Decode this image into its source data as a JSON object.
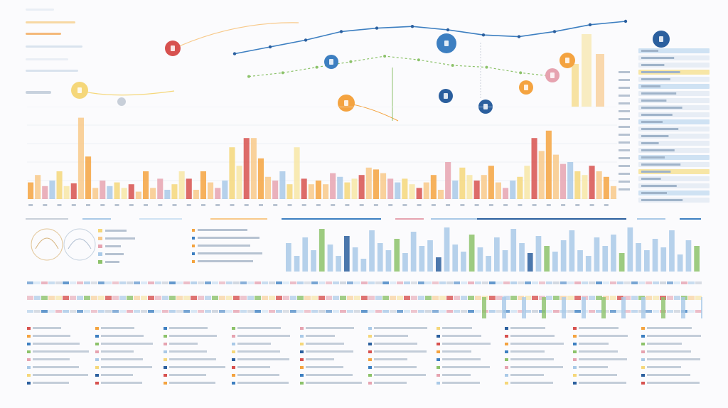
{
  "palette": {
    "orange": "#f4a340",
    "light_orange": "#f8c98a",
    "yellow": "#f5d77a",
    "pale_yellow": "#f7e6a6",
    "blue": "#3d7fc1",
    "light_blue": "#a9c9e7",
    "pale_blue": "#cfe2f3",
    "red": "#d7514f",
    "pink": "#e6a3b0",
    "green": "#8cc26a",
    "dark_navy": "#2b5f9e",
    "grey": "#c8cfd9"
  },
  "header": {
    "axis_ticks": [
      "",
      "",
      "",
      "",
      "",
      "",
      "",
      "",
      "",
      ""
    ]
  },
  "chart_data": [
    {
      "type": "bar",
      "title": "",
      "xlabel": "",
      "ylabel": "",
      "ylim": [
        0,
        100
      ],
      "grid": true,
      "legend": "none",
      "values": [
        18,
        26,
        14,
        20,
        30,
        14,
        17,
        88,
        46,
        12,
        20,
        14,
        18,
        12,
        16,
        8,
        30,
        12,
        22,
        10,
        16,
        30,
        22,
        10,
        30,
        18,
        12,
        20,
        56,
        36,
        66,
        66,
        44,
        24,
        20,
        30,
        16,
        56,
        22,
        16,
        20,
        16,
        28,
        24,
        18,
        22,
        26,
        34,
        32,
        28,
        22,
        18,
        22,
        16,
        12,
        18,
        26,
        10,
        40,
        20,
        34,
        26,
        20,
        26,
        36,
        18,
        12,
        20,
        24,
        36,
        66,
        52,
        74,
        48,
        38,
        40,
        30,
        26,
        36,
        30,
        24,
        14
      ],
      "colors_cycle": [
        "orange",
        "light_orange",
        "pink",
        "light_blue",
        "yellow",
        "pale_yellow",
        "red",
        "light_orange"
      ]
    },
    {
      "type": "line",
      "title": "",
      "series": [
        {
          "values": [
            62,
            70,
            78,
            88,
            92,
            94,
            90,
            84,
            82,
            88,
            96,
            100
          ]
        },
        {
          "values": [
            48,
            52,
            58,
            64,
            70,
            66,
            60,
            58,
            52,
            48
          ]
        }
      ]
    },
    {
      "type": "bar",
      "title": "",
      "values": [
        40,
        22,
        48,
        30,
        60,
        38,
        22,
        50,
        34,
        18,
        58,
        40,
        30,
        46,
        26,
        56,
        36,
        44,
        20,
        62,
        38,
        28,
        52,
        34,
        22,
        48,
        30,
        60,
        40,
        26,
        50,
        36,
        28,
        44,
        58,
        30,
        22,
        48,
        36,
        52,
        26,
        62,
        40,
        30,
        46,
        34,
        58,
        24,
        44,
        36
      ]
    }
  ],
  "node_markers": [
    {
      "name": "node-red",
      "color": "red"
    },
    {
      "name": "node-yellow",
      "color": "yellow"
    },
    {
      "name": "node-grey",
      "color": "grey"
    },
    {
      "name": "node-blue-1",
      "color": "blue"
    },
    {
      "name": "node-blue-2",
      "color": "blue"
    },
    {
      "name": "node-orange-1",
      "color": "orange"
    },
    {
      "name": "node-orange-2",
      "color": "orange"
    },
    {
      "name": "node-blue-3",
      "color": "dark_navy"
    },
    {
      "name": "node-blue-4",
      "color": "dark_navy"
    },
    {
      "name": "node-pink",
      "color": "pink"
    },
    {
      "name": "node-orange-3",
      "color": "orange"
    },
    {
      "name": "node-navy-top",
      "color": "dark_navy"
    }
  ]
}
